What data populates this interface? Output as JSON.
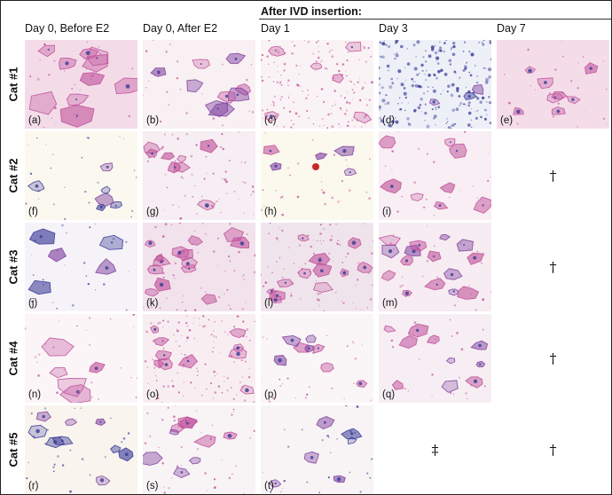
{
  "figure": {
    "group_header": "After IVD insertion:",
    "columns": [
      "Day 0, Before E2",
      "Day 0, After E2",
      "Day 1",
      "Day 3",
      "Day 7"
    ],
    "rows": [
      "Cat #1",
      "Cat #2",
      "Cat #3",
      "Cat #4",
      "Cat #5"
    ],
    "panels": [
      "(a)",
      "(b)",
      "(c)",
      "(d)",
      "(e)",
      "(f)",
      "(g)",
      "(h)",
      "(i)",
      "(j)",
      "(k)",
      "(l)",
      "(m)",
      "(n)",
      "(o)",
      "(p)",
      "(q)",
      "(r)",
      "(s)",
      "(t)"
    ],
    "symbols": {
      "dagger": "†",
      "double_dagger": "‡"
    },
    "colors": {
      "stain_background": "#f7e6ee",
      "cell_magenta": "#c0509a",
      "cell_purple": "#7f3f9e",
      "nucleus_blue": "#3a3a96",
      "red_blood_cell": "#c62828"
    }
  }
}
